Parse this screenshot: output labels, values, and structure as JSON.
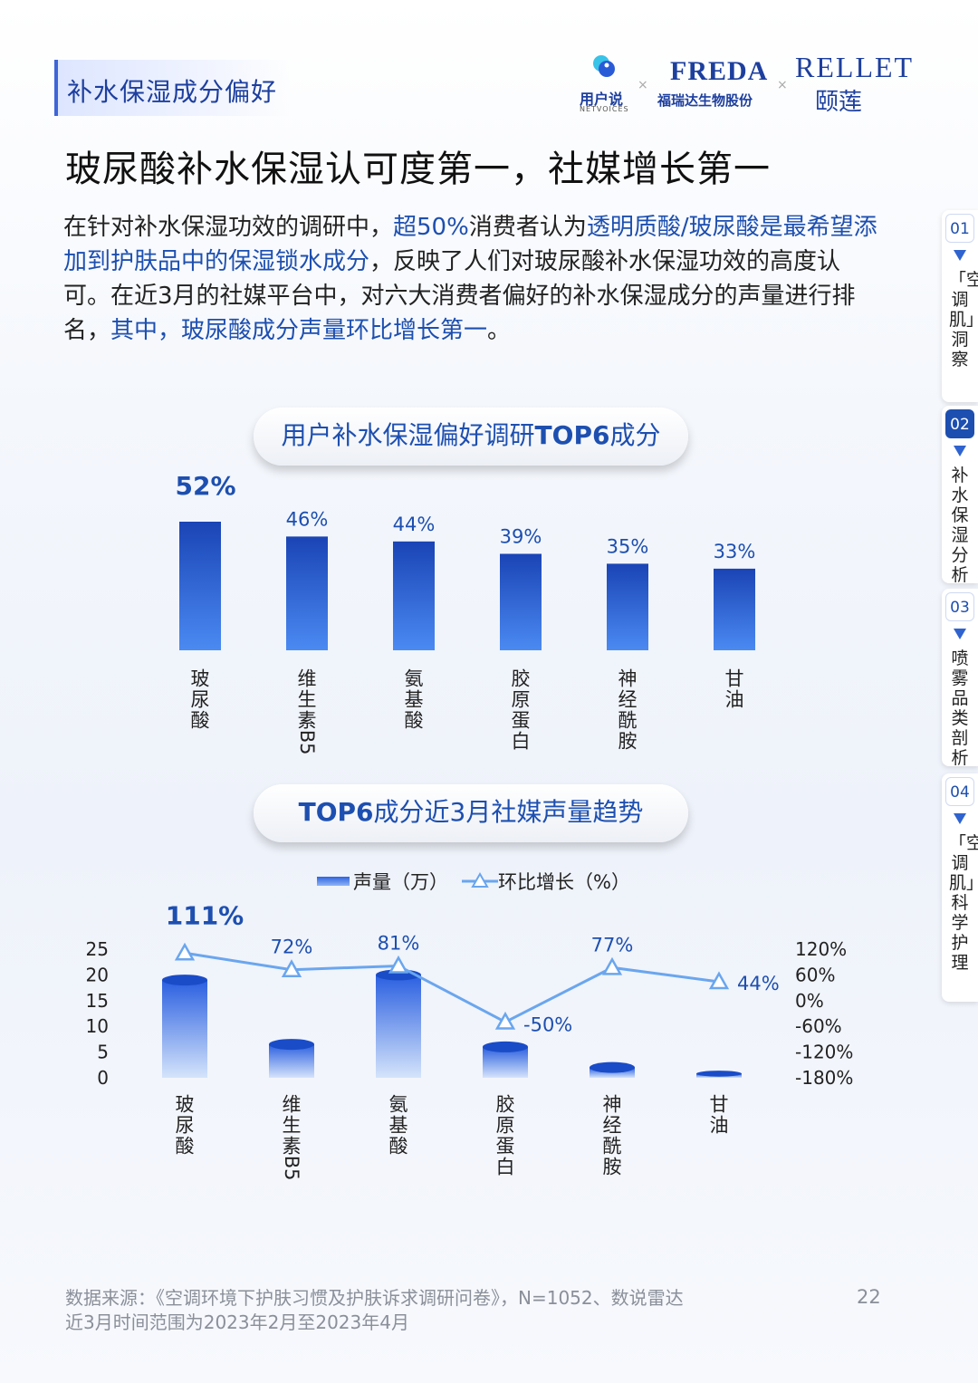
{
  "section_tag": "补水保湿成分偏好",
  "logos": {
    "netvoices_cn": "用户说",
    "netvoices_en": "NETVOICES",
    "freda_en": "FREDA",
    "freda_cn": "福瑞达生物股份",
    "rellet_en": "RELLET",
    "rellet_cn": "颐莲",
    "separator": "×"
  },
  "title": "玻尿酸补水保湿认可度第一，社媒增长第一",
  "intro": {
    "p1": "在针对补水保湿功效的调研中，",
    "h1": "超50%",
    "p2": "消费者认为",
    "h2": "透明质酸/玻尿酸是最希望添加到护肤品中的保湿锁水成分",
    "p3": "，反映了人们对玻尿酸补水保湿功效的高度认可。在近3月的社媒平台中，对六大消费者偏好的补水保湿成分的声量进行排名，",
    "h3": "其中，玻尿酸成分声量环比增长第一",
    "p4": "。"
  },
  "side_nav": [
    {
      "num": "01",
      "label": "「空调肌」洞察",
      "active": false
    },
    {
      "num": "02",
      "label": "补水保湿分析",
      "active": true
    },
    {
      "num": "03",
      "label": "喷雾品类剖析",
      "active": false
    },
    {
      "num": "04",
      "label": "「空调肌」科学护理",
      "active": false
    }
  ],
  "chart1_title_parts": {
    "a": "用户补水保湿偏好调研",
    "b": "TOP6",
    "c": "成分"
  },
  "chart2_title_parts": {
    "a": "TOP6",
    "b": "成分近3月社媒声量趋势"
  },
  "legend": {
    "bar": "声量（万）",
    "line": "环比增长（%）"
  },
  "chart_data": [
    {
      "type": "bar",
      "title": "用户补水保湿偏好调研TOP6成分",
      "categories": [
        "玻尿酸",
        "维生素B5",
        "氨基酸",
        "胶原蛋白",
        "神经酰胺",
        "甘油"
      ],
      "values": [
        52,
        46,
        44,
        39,
        35,
        33
      ],
      "value_labels": [
        "52%",
        "46%",
        "44%",
        "39%",
        "35%",
        "33%"
      ],
      "unit": "%",
      "ylim": [
        0,
        52
      ],
      "bar_color": "#1d4fb0"
    },
    {
      "type": "bar+line",
      "title": "TOP6成分近3月社媒声量趋势",
      "categories": [
        "玻尿酸",
        "维生素B5",
        "氨基酸",
        "胶原蛋白",
        "神经酰胺",
        "甘油"
      ],
      "series": [
        {
          "name": "声量（万）",
          "type": "bar",
          "axis": "left",
          "values": [
            19,
            6.5,
            20,
            6,
            2,
            0.8
          ]
        },
        {
          "name": "环比增长（%）",
          "type": "line",
          "axis": "right",
          "values": [
            111,
            72,
            81,
            -50,
            77,
            44
          ],
          "labels": [
            "111%",
            "72%",
            "81%",
            "-50%",
            "77%",
            "44%"
          ]
        }
      ],
      "y_left": {
        "min": 0,
        "max": 25,
        "ticks": [
          "25",
          "20",
          "15",
          "10",
          "5",
          "0"
        ]
      },
      "y_right": {
        "min": -180,
        "max": 120,
        "ticks": [
          "120%",
          "60%",
          "0%",
          "-60%",
          "-120%",
          "-180%"
        ]
      },
      "line_color": "#6aa6ee",
      "bar_color": "#2f63e0",
      "legend_position": "top-center"
    }
  ],
  "footer": {
    "line1": "数据来源：《空调环境下护肤习惯及护肤诉求调研问卷》，N=1052、数说雷达",
    "line2": "近3月时间范围为2023年2月至2023年4月"
  },
  "page_number": "22"
}
